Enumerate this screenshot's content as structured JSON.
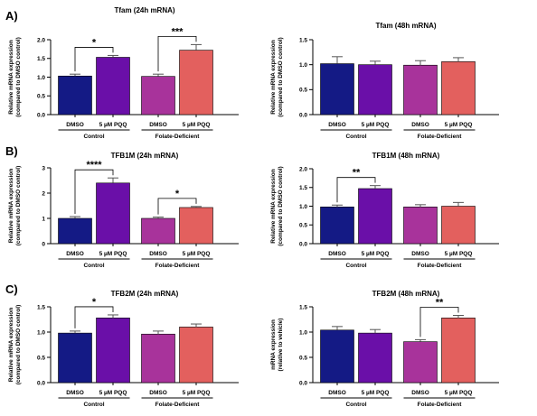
{
  "chart_data": [
    {
      "type": "bar",
      "panel_label": "A)",
      "title": "Tfam (24h mRNA)",
      "ylabel_lines": [
        "Relative mRNA expression",
        "(compared to DMSO control)"
      ],
      "ylim": [
        0,
        2.0
      ],
      "yticks": [
        "0.0",
        "0.5",
        "1.0",
        "1.5",
        "2.0"
      ],
      "categories": [
        "DMSO",
        "5 µM PQQ",
        "DMSO",
        "5 µM PQQ"
      ],
      "groups": [
        "Control",
        "Folate-Deficient"
      ],
      "values": [
        1.03,
        1.53,
        1.02,
        1.72
      ],
      "errors": [
        0.05,
        0.05,
        0.06,
        0.15
      ],
      "colors": [
        "#141a85",
        "#6a0fa8",
        "#a8339b",
        "#e3605e"
      ],
      "significance": [
        {
          "from": 0,
          "to": 1,
          "label": "*"
        },
        {
          "from": 2,
          "to": 3,
          "label": "***"
        }
      ]
    },
    {
      "type": "bar",
      "panel_label": "",
      "title": "Tfam (48h mRNA)",
      "ylabel_lines": [
        "Relative mRNA expression",
        "(compared to DMSO control)"
      ],
      "ylim": [
        0,
        1.5
      ],
      "yticks": [
        "0.0",
        "0.5",
        "1.0",
        "1.5"
      ],
      "categories": [
        "DMSO",
        "5 µM PQQ",
        "DMSO",
        "5 µM PQQ"
      ],
      "groups": [
        "Control",
        "Folate-Deficient"
      ],
      "values": [
        1.02,
        1.0,
        0.99,
        1.06
      ],
      "errors": [
        0.14,
        0.07,
        0.09,
        0.08
      ],
      "colors": [
        "#141a85",
        "#6a0fa8",
        "#a8339b",
        "#e3605e"
      ],
      "significance": []
    },
    {
      "type": "bar",
      "panel_label": "B)",
      "title": "TFB1M (24h mRNA)",
      "ylabel_lines": [
        "Relative mRNA expression",
        "(compared to DMSO control)"
      ],
      "ylim": [
        0,
        3
      ],
      "yticks": [
        "0",
        "1",
        "2",
        "3"
      ],
      "categories": [
        "DMSO",
        "5 µM PQQ",
        "DMSO",
        "5 µM PQQ"
      ],
      "groups": [
        "Control",
        "Folate-Deficient"
      ],
      "values": [
        1.0,
        2.4,
        1.0,
        1.43
      ],
      "errors": [
        0.07,
        0.2,
        0.05,
        0.04
      ],
      "colors": [
        "#141a85",
        "#6a0fa8",
        "#a8339b",
        "#e3605e"
      ],
      "significance": [
        {
          "from": 0,
          "to": 1,
          "label": "****"
        },
        {
          "from": 2,
          "to": 3,
          "label": "*"
        }
      ]
    },
    {
      "type": "bar",
      "panel_label": "",
      "title": "TFB1M (48h mRNA)",
      "ylabel_lines": [
        "Relative mRNA expression",
        "(compared to DMSO control)"
      ],
      "ylim": [
        0,
        2.0
      ],
      "yticks": [
        "0.0",
        "0.5",
        "1.0",
        "1.5",
        "2.0"
      ],
      "categories": [
        "DMSO",
        "5 µM PQQ",
        "DMSO",
        "5 µM PQQ"
      ],
      "groups": [
        "Control",
        "Folate-Deficient"
      ],
      "values": [
        0.98,
        1.47,
        0.98,
        1.0
      ],
      "errors": [
        0.05,
        0.08,
        0.06,
        0.1
      ],
      "colors": [
        "#141a85",
        "#6a0fa8",
        "#a8339b",
        "#e3605e"
      ],
      "significance": [
        {
          "from": 0,
          "to": 1,
          "label": "**"
        }
      ]
    },
    {
      "type": "bar",
      "panel_label": "C)",
      "title": "TFB2M (24h mRNA)",
      "ylabel_lines": [
        "Relative mRNA expression",
        "(compared to DMSO control)"
      ],
      "ylim": [
        0,
        1.5
      ],
      "yticks": [
        "0.0",
        "0.5",
        "1.0",
        "1.5"
      ],
      "categories": [
        "DMSO",
        "5 µM PQQ",
        "DMSO",
        "5 µM PQQ"
      ],
      "groups": [
        "Control",
        "Folate-Deficient"
      ],
      "values": [
        0.98,
        1.28,
        0.96,
        1.1
      ],
      "errors": [
        0.04,
        0.06,
        0.06,
        0.06
      ],
      "colors": [
        "#141a85",
        "#6a0fa8",
        "#a8339b",
        "#e3605e"
      ],
      "significance": [
        {
          "from": 0,
          "to": 1,
          "label": "*"
        }
      ]
    },
    {
      "type": "bar",
      "panel_label": "",
      "title": "TFB2M (48h mRNA)",
      "ylabel_lines": [
        "mRNA expression",
        "(relative to vehicle)"
      ],
      "ylim": [
        0,
        1.5
      ],
      "yticks": [
        "0.0",
        "0.5",
        "1.0",
        "1.5"
      ],
      "categories": [
        "DMSO",
        "5 µM PQQ",
        "DMSO",
        "5 µM PQQ"
      ],
      "groups": [
        "Control",
        "Folate-Deficient"
      ],
      "values": [
        1.04,
        0.98,
        0.81,
        1.28
      ],
      "errors": [
        0.07,
        0.07,
        0.04,
        0.05
      ],
      "colors": [
        "#141a85",
        "#6a0fa8",
        "#a8339b",
        "#e3605e"
      ],
      "significance": [
        {
          "from": 2,
          "to": 3,
          "label": "**"
        }
      ]
    }
  ]
}
